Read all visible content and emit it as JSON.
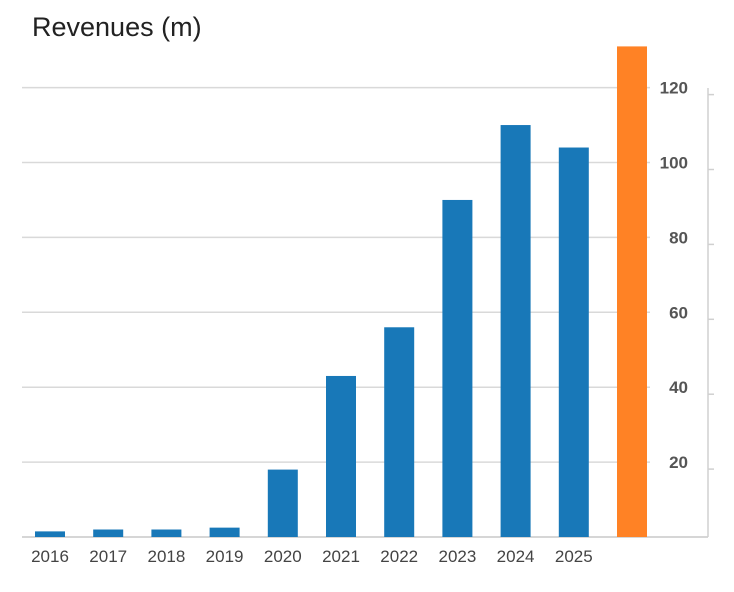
{
  "chart_data": {
    "type": "bar",
    "title": "Revenues (m)",
    "categories": [
      "2016",
      "2017",
      "2018",
      "2019",
      "2020",
      "2021",
      "2022",
      "2023",
      "2024",
      "2025",
      ""
    ],
    "series": [
      {
        "values": [
          1.5,
          2,
          2,
          2.5,
          18,
          43,
          56,
          90,
          110,
          104,
          131
        ]
      }
    ],
    "bar_colors": [
      "#1878b8",
      "#1878b8",
      "#1878b8",
      "#1878b8",
      "#1878b8",
      "#1878b8",
      "#1878b8",
      "#1878b8",
      "#1878b8",
      "#1878b8",
      "#ff8225"
    ],
    "yticks": [
      "20",
      "40",
      "60",
      "80",
      "100",
      "120"
    ],
    "ylim": [
      0,
      131
    ],
    "y_axis_side": "right",
    "grid": true,
    "legend": "none"
  }
}
